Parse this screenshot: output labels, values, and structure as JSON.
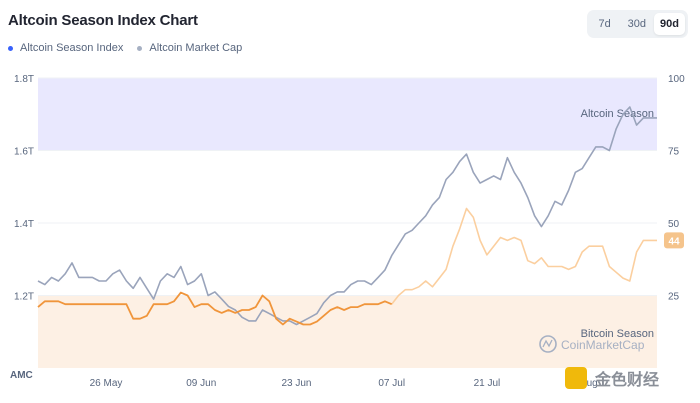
{
  "header": {
    "title": "Altcoin Season Index Chart"
  },
  "legend": [
    {
      "label": "Altcoin Season Index",
      "color": "#3861fb"
    },
    {
      "label": "Altcoin Market Cap",
      "color": "#a6b0c3"
    }
  ],
  "ranges": {
    "items": [
      "7d",
      "30d",
      "90d"
    ],
    "selected": "90d"
  },
  "zones": {
    "altcoin_label": "Altcoin Season",
    "bitcoin_label": "Bitcoin Season"
  },
  "watermark": {
    "text": "CoinMarketCap",
    "corner_text": "金色财经"
  },
  "colors": {
    "altcoin_zone": "#e9e8fe",
    "bitcoin_zone": "#fdf0e4",
    "index_line": "#f0953b",
    "index_line_faded": "#fbcf9f",
    "cap_line": "#9aa4bb",
    "badge": "#f5c48c"
  },
  "chart_data": {
    "type": "line",
    "x_tick_labels": [
      "26 May",
      "09 Jun",
      "23 Jun",
      "07 Jul",
      "21 Jul",
      "04 Aug"
    ],
    "x_tick_days": [
      10,
      24,
      38,
      52,
      66,
      80
    ],
    "x_range": [
      0,
      91
    ],
    "left_axis": {
      "label": "AMC",
      "ticks": [
        "1.2T",
        "1.4T",
        "1.6T",
        "1.8T"
      ],
      "range": [
        1.0,
        1.8
      ]
    },
    "right_axis": {
      "ticks": [
        "25",
        "50",
        "75",
        "100"
      ],
      "range": [
        0,
        100
      ]
    },
    "current_index": "44",
    "series": [
      {
        "name": "Altcoin Season Index",
        "axis": "right",
        "x": [
          0,
          1,
          2,
          3,
          4,
          5,
          6,
          7,
          8,
          9,
          10,
          11,
          12,
          13,
          14,
          15,
          16,
          17,
          18,
          19,
          20,
          21,
          22,
          23,
          24,
          25,
          26,
          27,
          28,
          29,
          30,
          31,
          32,
          33,
          34,
          35,
          36,
          37,
          38,
          39,
          40,
          41,
          42,
          43,
          44,
          45,
          46,
          47,
          48,
          49,
          50,
          51,
          52,
          53,
          54,
          55,
          56,
          57,
          58,
          59,
          60,
          61,
          62,
          63,
          64,
          65,
          66,
          67,
          68,
          69,
          70,
          71,
          72,
          73,
          74,
          75,
          76,
          77,
          78,
          79,
          80,
          81,
          82,
          83,
          84,
          85,
          86,
          87,
          88,
          89,
          90,
          91
        ],
        "values": [
          21,
          23,
          23,
          23,
          22,
          22,
          22,
          22,
          22,
          22,
          22,
          22,
          22,
          22,
          17,
          17,
          18,
          22,
          22,
          22,
          23,
          26,
          25,
          21,
          22,
          22,
          20,
          19,
          20,
          19,
          20,
          20,
          21,
          25,
          23,
          17,
          15,
          17,
          16,
          15,
          15,
          16,
          18,
          20,
          21,
          20,
          21,
          21,
          22,
          22,
          22,
          23,
          22,
          25,
          27,
          27,
          28,
          30,
          28,
          31,
          34,
          42,
          48,
          55,
          52,
          44,
          39,
          42,
          45,
          44,
          45,
          44,
          37,
          36,
          38,
          35,
          35,
          35,
          34,
          35,
          40,
          42,
          42,
          42,
          35,
          33,
          31,
          30,
          40,
          44,
          44,
          44
        ]
      },
      {
        "name": "Altcoin Market Cap",
        "axis": "left",
        "x": [
          0,
          1,
          2,
          3,
          4,
          5,
          6,
          7,
          8,
          9,
          10,
          11,
          12,
          13,
          14,
          15,
          16,
          17,
          18,
          19,
          20,
          21,
          22,
          23,
          24,
          25,
          26,
          27,
          28,
          29,
          30,
          31,
          32,
          33,
          34,
          35,
          36,
          37,
          38,
          39,
          40,
          41,
          42,
          43,
          44,
          45,
          46,
          47,
          48,
          49,
          50,
          51,
          52,
          53,
          54,
          55,
          56,
          57,
          58,
          59,
          60,
          61,
          62,
          63,
          64,
          65,
          66,
          67,
          68,
          69,
          70,
          71,
          72,
          73,
          74,
          75,
          76,
          77,
          78,
          79,
          80,
          81,
          82,
          83,
          84,
          85,
          86,
          87,
          88,
          89,
          90,
          91
        ],
        "values": [
          1.24,
          1.23,
          1.25,
          1.24,
          1.26,
          1.29,
          1.25,
          1.25,
          1.25,
          1.24,
          1.24,
          1.26,
          1.27,
          1.24,
          1.22,
          1.25,
          1.22,
          1.19,
          1.24,
          1.26,
          1.25,
          1.28,
          1.23,
          1.24,
          1.26,
          1.2,
          1.21,
          1.19,
          1.17,
          1.16,
          1.14,
          1.13,
          1.13,
          1.16,
          1.15,
          1.14,
          1.13,
          1.13,
          1.12,
          1.13,
          1.14,
          1.15,
          1.18,
          1.2,
          1.21,
          1.21,
          1.23,
          1.24,
          1.24,
          1.23,
          1.25,
          1.27,
          1.31,
          1.34,
          1.37,
          1.38,
          1.4,
          1.42,
          1.45,
          1.47,
          1.52,
          1.54,
          1.57,
          1.59,
          1.54,
          1.51,
          1.52,
          1.53,
          1.52,
          1.58,
          1.54,
          1.51,
          1.47,
          1.42,
          1.39,
          1.42,
          1.46,
          1.45,
          1.49,
          1.54,
          1.55,
          1.58,
          1.61,
          1.61,
          1.6,
          1.66,
          1.7,
          1.72,
          1.67,
          1.69,
          1.69,
          1.69
        ]
      }
    ]
  }
}
